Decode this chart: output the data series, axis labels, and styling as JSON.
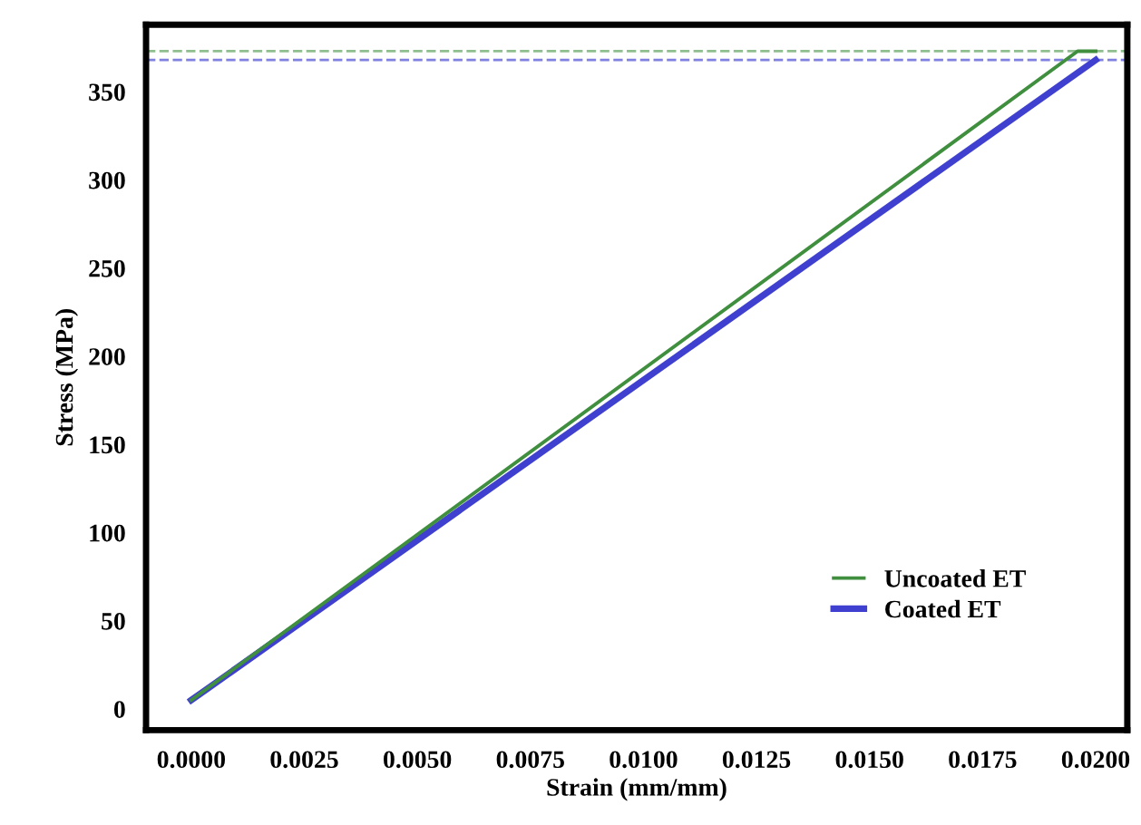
{
  "chart_data": {
    "type": "line",
    "xlabel": "Strain (mm/mm)",
    "ylabel": "Stress (MPa)",
    "series": [
      {
        "name": "Uncoated ET",
        "color": "#3f8f3f",
        "x": [
          0.0,
          0.0196,
          0.02
        ],
        "values": [
          5,
          373,
          373
        ]
      },
      {
        "name": "Coated ET",
        "color": "#4040d0",
        "x": [
          0.0,
          0.02
        ],
        "values": [
          5,
          368
        ]
      }
    ],
    "xlim": [
      -0.001,
      0.0207
    ],
    "xticks": [
      {
        "value": 0,
        "label": "0.0000"
      },
      {
        "value": 0.0025,
        "label": "0.0025"
      },
      {
        "value": 0.005,
        "label": "0.0050"
      },
      {
        "value": 0.0075,
        "label": "0.0075"
      },
      {
        "value": 0.01,
        "label": "0.0100"
      },
      {
        "value": 0.0125,
        "label": "0.0125"
      },
      {
        "value": 0.015,
        "label": "0.0150"
      },
      {
        "value": 0.0175,
        "label": "0.0175"
      },
      {
        "value": 0.02,
        "label": "0.0200"
      }
    ],
    "ylim": [
      -12,
      388
    ],
    "yticks": [
      0,
      50,
      100,
      150,
      200,
      250,
      300,
      350
    ],
    "ref_lines": [
      {
        "axis": "y",
        "value": 373,
        "color": "#8fbf8f",
        "line_style": "dashed"
      },
      {
        "axis": "y",
        "value": 368,
        "color": "#8080e0",
        "line_style": "dashed"
      }
    ],
    "legend": "bottom right",
    "grid": false,
    "line_style": "solid",
    "marker": "none"
  }
}
